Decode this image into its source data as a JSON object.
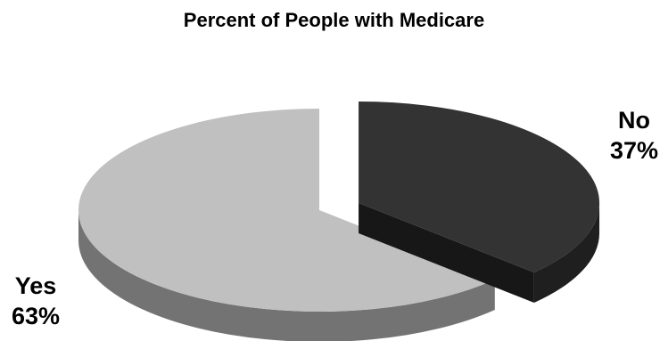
{
  "chart_data": {
    "type": "pie",
    "title": "Percent of People with Medicare",
    "categories": [
      "No",
      "Yes"
    ],
    "values": [
      37,
      63
    ],
    "value_labels": [
      "37%",
      "63%"
    ],
    "colors": {
      "No": "#333333",
      "Yes": "#c0c0c0"
    },
    "style": "3d-exploded",
    "legend": "none"
  }
}
